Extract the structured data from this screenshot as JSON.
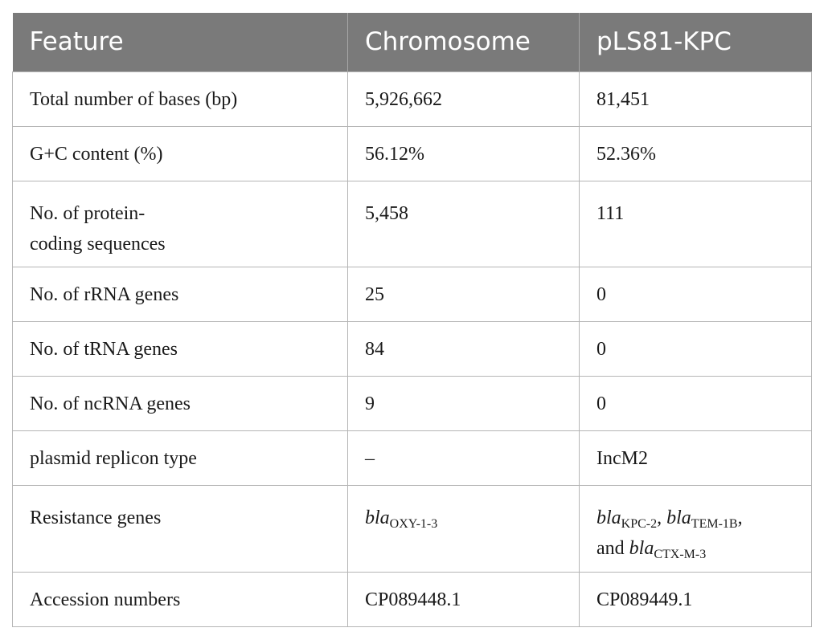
{
  "table": {
    "headers": [
      "Feature",
      "Chromosome",
      "pLS81-KPC"
    ],
    "rows": [
      {
        "feature": "Total number of bases (bp)",
        "chromosome": "5,926,662",
        "plasmid": "81,451"
      },
      {
        "feature": "G+C content (%)",
        "chromosome": "56.12%",
        "plasmid": "52.36%"
      },
      {
        "feature_line1": "No. of protein-",
        "feature_line2": "coding sequences",
        "chromosome": "5,458",
        "plasmid": "111"
      },
      {
        "feature": "No. of rRNA genes",
        "chromosome": "25",
        "plasmid": "0"
      },
      {
        "feature": "No. of tRNA genes",
        "chromosome": "84",
        "plasmid": "0"
      },
      {
        "feature": "No. of ncRNA genes",
        "chromosome": "9",
        "plasmid": "0"
      },
      {
        "feature": "plasmid replicon type",
        "chromosome": "–",
        "plasmid": "IncM2"
      },
      {
        "feature": "Resistance genes",
        "chromosome": {
          "gene": "bla",
          "sub": "OXY-1-3"
        },
        "plasmid": {
          "g1": "bla",
          "s1": "KPC-2",
          "sep1": ", ",
          "g2": "bla",
          "s2": "TEM-1B",
          "sep2": ",",
          "conj": "and ",
          "g3": "bla",
          "s3": "CTX-M-3"
        }
      },
      {
        "feature": "Accession numbers",
        "chromosome": "CP089448.1",
        "plasmid": "CP089449.1"
      }
    ]
  }
}
